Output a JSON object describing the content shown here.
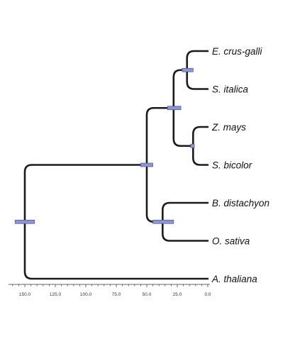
{
  "tree": {
    "taxa": [
      {
        "id": "ecg",
        "name": "E. crus-galli"
      },
      {
        "id": "sit",
        "name": "S. italica"
      },
      {
        "id": "zma",
        "name": "Z. mays"
      },
      {
        "id": "sbi",
        "name": "S. bicolor"
      },
      {
        "id": "bdi",
        "name": "B. distachyon"
      },
      {
        "id": "osa",
        "name": "O. sativa"
      },
      {
        "id": "ath",
        "name": "A. thaliana"
      }
    ],
    "nodes": [
      {
        "id": "root",
        "age": 150,
        "ci": [
          158,
          142
        ],
        "children": [
          "n_grass",
          "ath"
        ]
      },
      {
        "id": "n_grass",
        "age": 50,
        "ci": [
          55,
          45
        ],
        "children": [
          "n_panicoid",
          "n_bop"
        ]
      },
      {
        "id": "n_panicoid",
        "age": 28,
        "ci": [
          33,
          22
        ],
        "children": [
          "n_setaria",
          "n_andro"
        ]
      },
      {
        "id": "n_setaria",
        "age": 17,
        "ci": [
          21,
          12
        ],
        "children": [
          "ecg",
          "sit"
        ]
      },
      {
        "id": "n_andro",
        "age": 12,
        "ci": [
          14,
          11
        ],
        "children": [
          "zma",
          "sbi"
        ]
      },
      {
        "id": "n_bop",
        "age": 37,
        "ci": [
          45,
          28
        ],
        "children": [
          "bdi",
          "osa"
        ]
      }
    ]
  },
  "axis": {
    "ticks": [
      "150.0",
      "125.0",
      "100.0",
      "75.0",
      "50.0",
      "25.0",
      "0.0"
    ],
    "tick_values": [
      150,
      125,
      100,
      75,
      50,
      25,
      0
    ],
    "range": [
      160,
      0
    ]
  }
}
